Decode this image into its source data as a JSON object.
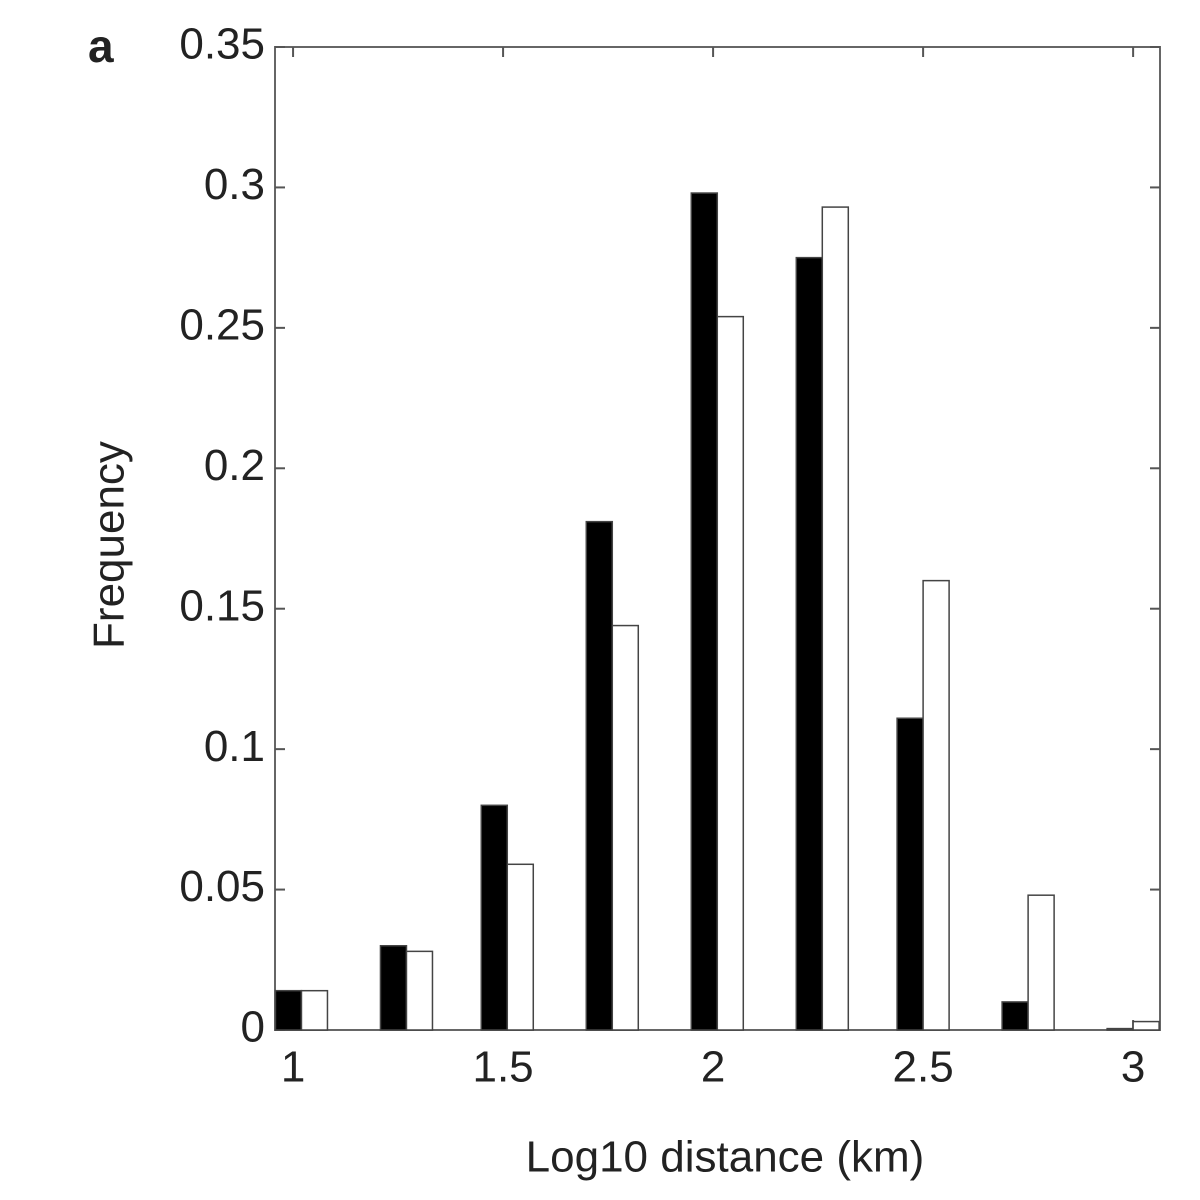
{
  "chart_data": {
    "type": "bar",
    "panel_label": "a",
    "x_label": "Log10 distance (km)",
    "y_label": "Frequency",
    "x": [
      1.02,
      1.27,
      1.51,
      1.76,
      2.01,
      2.26,
      2.5,
      2.75,
      3.0
    ],
    "series": [
      {
        "color": "#000000",
        "values": [
          0.014,
          0.03,
          0.08,
          0.181,
          0.298,
          0.275,
          0.111,
          0.01,
          0.0005
        ]
      },
      {
        "color": "#ffffff",
        "values": [
          0.014,
          0.028,
          0.059,
          0.144,
          0.254,
          0.293,
          0.16,
          0.048,
          0.003
        ]
      }
    ],
    "xlim": [
      0.957,
      3.064
    ],
    "xticks": [
      1,
      1.5,
      2,
      2.5,
      3
    ],
    "ylim": [
      0,
      0.35
    ],
    "yticks": [
      0,
      0.05,
      0.1,
      0.15,
      0.2,
      0.25,
      0.3,
      0.35
    ],
    "grid": false
  }
}
